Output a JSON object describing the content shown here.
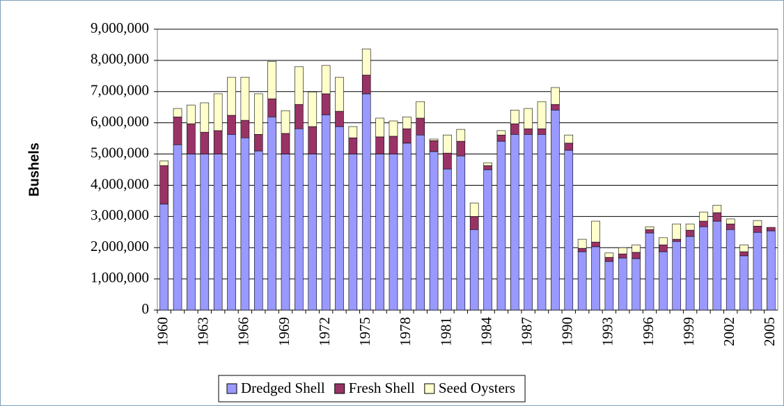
{
  "chart_data": {
    "type": "bar",
    "stacked": true,
    "y_label": "Bushels",
    "categories": [
      "1960",
      null,
      null,
      "1963",
      null,
      null,
      "1966",
      null,
      null,
      "1969",
      null,
      null,
      "1972",
      null,
      null,
      "1975",
      null,
      null,
      "1978",
      null,
      null,
      "1981",
      null,
      null,
      "1984",
      null,
      null,
      "1987",
      null,
      null,
      "1990",
      null,
      null,
      "1993",
      null,
      null,
      "1996",
      null,
      null,
      "1999",
      null,
      null,
      "2002",
      null,
      null,
      "2005"
    ],
    "series": [
      {
        "name": "Dredged Shell",
        "color": "#9999ff",
        "values": [
          3400000,
          5300000,
          5000000,
          5000000,
          5000000,
          5630000,
          5520000,
          5100000,
          6190000,
          5000000,
          5810000,
          5000000,
          6260000,
          5880000,
          5000000,
          6930000,
          5000000,
          5000000,
          5350000,
          5610000,
          5080000,
          4520000,
          4940000,
          2580000,
          4500000,
          5410000,
          5630000,
          5630000,
          5630000,
          6410000,
          5120000,
          1870000,
          2030000,
          1560000,
          1670000,
          1650000,
          2470000,
          1870000,
          2200000,
          2360000,
          2670000,
          2850000,
          2580000,
          1740000,
          2490000,
          2540000
        ]
      },
      {
        "name": "Fresh Shell",
        "color": "#993366",
        "values": [
          1230000,
          890000,
          970000,
          700000,
          750000,
          610000,
          560000,
          530000,
          580000,
          660000,
          780000,
          880000,
          670000,
          490000,
          520000,
          600000,
          550000,
          570000,
          460000,
          540000,
          350000,
          510000,
          470000,
          420000,
          130000,
          200000,
          340000,
          180000,
          180000,
          180000,
          230000,
          110000,
          150000,
          130000,
          130000,
          200000,
          110000,
          220000,
          70000,
          200000,
          180000,
          270000,
          180000,
          130000,
          200000,
          110000
        ]
      },
      {
        "name": "Seed Oysters",
        "color": "#ffffcc",
        "values": [
          150000,
          270000,
          600000,
          940000,
          1180000,
          1220000,
          1380000,
          1300000,
          1200000,
          730000,
          1210000,
          1110000,
          910000,
          1090000,
          360000,
          840000,
          600000,
          490000,
          380000,
          530000,
          50000,
          580000,
          380000,
          430000,
          90000,
          140000,
          440000,
          650000,
          870000,
          540000,
          260000,
          290000,
          670000,
          140000,
          200000,
          240000,
          90000,
          230000,
          490000,
          200000,
          290000,
          240000,
          160000,
          220000,
          180000,
          0
        ]
      }
    ],
    "ylim": [
      0,
      9000000
    ],
    "yticks": [
      0,
      {
        "value": 1000000,
        "label": "1,000,000"
      },
      {
        "value": 2000000,
        "label": "2,000,000"
      },
      {
        "value": 3000000,
        "label": "3,000,000"
      },
      {
        "value": 4000000,
        "label": "4,000,000"
      },
      {
        "value": 5000000,
        "label": "5,000,000"
      },
      {
        "value": 6000000,
        "label": "6,000,000"
      },
      {
        "value": 7000000,
        "label": "7,000,000"
      },
      {
        "value": 8000000,
        "label": "8,000,000"
      },
      {
        "value": 9000000,
        "label": "9,000,000"
      }
    ],
    "grid": true,
    "legend": "bottom"
  }
}
